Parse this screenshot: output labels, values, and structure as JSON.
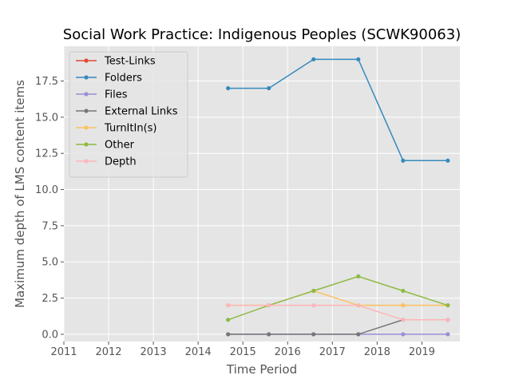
{
  "chart_data": {
    "type": "line",
    "title": "Social Work Practice: Indigenous Peoples (SCWK90063)",
    "xlabel": "Time Period",
    "ylabel": "Maximum depth of LMS content items",
    "xlim": [
      2011,
      2019.85
    ],
    "ylim": [
      -0.5,
      19.9
    ],
    "xticks": [
      2011,
      2012,
      2013,
      2014,
      2015,
      2016,
      2017,
      2018,
      2019
    ],
    "xtick_labels": [
      "2011",
      "2012",
      "2013",
      "2014",
      "2015",
      "2016",
      "2017",
      "2018",
      "2019"
    ],
    "yticks": [
      0.0,
      2.5,
      5.0,
      7.5,
      10.0,
      12.5,
      15.0,
      17.5
    ],
    "ytick_labels": [
      "0.0",
      "2.5",
      "5.0",
      "7.5",
      "10.0",
      "12.5",
      "15.0",
      "17.5"
    ],
    "grid": true,
    "legend_position": "top-left",
    "x": [
      2014.67,
      2015.58,
      2016.58,
      2017.58,
      2018.58,
      2019.58
    ],
    "series": [
      {
        "name": "Test-Links",
        "color": "#E24A33",
        "values": [
          null,
          null,
          null,
          null,
          null,
          null
        ]
      },
      {
        "name": "Folders",
        "color": "#348ABD",
        "values": [
          17,
          17,
          19,
          19,
          12,
          12
        ]
      },
      {
        "name": "Files",
        "color": "#988ED5",
        "values": [
          0,
          0,
          0,
          0,
          0,
          0
        ]
      },
      {
        "name": "External Links",
        "color": "#777777",
        "values": [
          0,
          0,
          0,
          0,
          1,
          1
        ]
      },
      {
        "name": "TurnItIn(s)",
        "color": "#FBC15E",
        "values": [
          2,
          2,
          3,
          2,
          2,
          2
        ]
      },
      {
        "name": "Other",
        "color": "#8EBA42",
        "values": [
          1,
          2,
          3,
          4,
          3,
          2
        ]
      },
      {
        "name": "Depth",
        "color": "#FFB5B8",
        "values": [
          2,
          2,
          2,
          2,
          1,
          1
        ]
      }
    ]
  }
}
